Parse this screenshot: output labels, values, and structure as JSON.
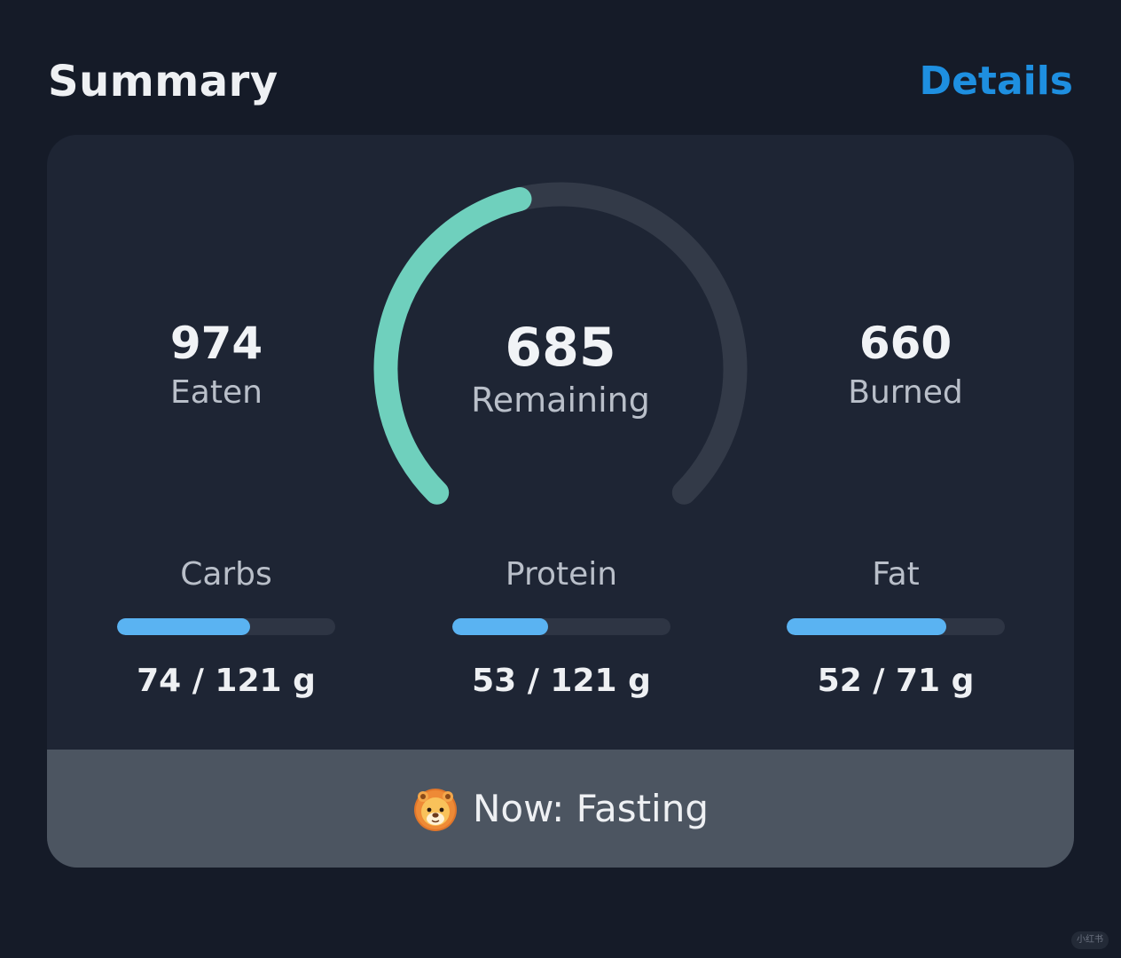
{
  "header": {
    "title": "Summary",
    "details_link": "Details"
  },
  "summary": {
    "eaten": {
      "value": "974",
      "label": "Eaten"
    },
    "remaining": {
      "value": "685",
      "label": "Remaining"
    },
    "burned": {
      "value": "660",
      "label": "Burned"
    },
    "gauge_progress_fraction": 0.45
  },
  "macros": [
    {
      "label": "Carbs",
      "value_text": "74 / 121 g",
      "consumed": 74,
      "goal": 121
    },
    {
      "label": "Protein",
      "value_text": "53 / 121 g",
      "consumed": 53,
      "goal": 121
    },
    {
      "label": "Fat",
      "value_text": "52 / 71 g",
      "consumed": 52,
      "goal": 71
    }
  ],
  "status": {
    "icon": "lion-face-icon",
    "text": "Now: Fasting"
  },
  "watermark": {
    "text": "小红书"
  },
  "colors": {
    "background": "#151b28",
    "card": "#1e2534",
    "accent_link": "#1e8fe0",
    "gauge_fill": "#6fd0bd",
    "gauge_track": "#333a48",
    "bar_fill": "#5ab3f2",
    "bar_track": "#2e3544",
    "status_bg": "#4c5561"
  }
}
